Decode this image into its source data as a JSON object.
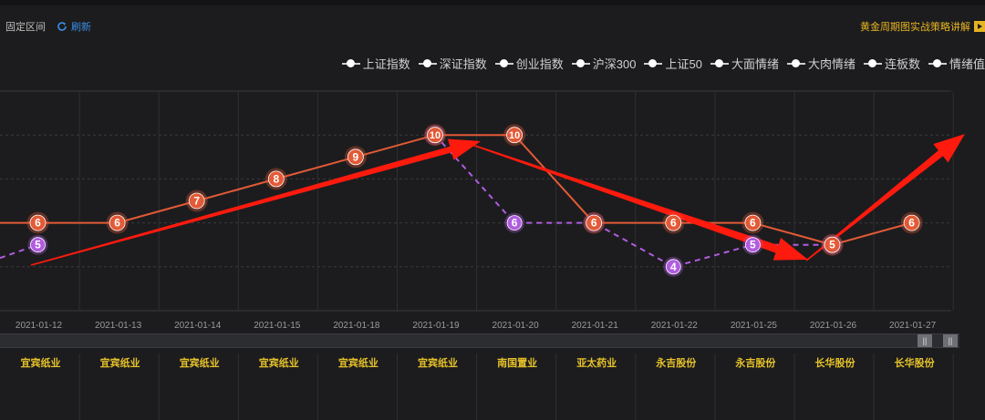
{
  "header": {
    "interval_label": "固定区间",
    "refresh_label": "刷新",
    "strategy_link": "黄金周期图实战策略讲解"
  },
  "legend": {
    "items": [
      "上证指数",
      "深证指数",
      "创业指数",
      "沪深300",
      "上证50",
      "大面情绪",
      "大肉情绪",
      "连板数",
      "情绪值"
    ]
  },
  "colors": {
    "line_orange": "#e35a36",
    "line_purple": "#b05ce0",
    "arrow_red": "#ff1a0e",
    "stock_label": "#e6c229"
  },
  "chart_data": {
    "type": "line",
    "categories": [
      "2021-01-12",
      "2021-01-13",
      "2021-01-14",
      "2021-01-15",
      "2021-01-18",
      "2021-01-19",
      "2021-01-20",
      "2021-01-21",
      "2021-01-22",
      "2021-01-25",
      "2021-01-26",
      "2021-01-27"
    ],
    "stocks": [
      "宜宾纸业",
      "宜宾纸业",
      "宜宾纸业",
      "宜宾纸业",
      "宜宾纸业",
      "宜宾纸业",
      "南国置业",
      "亚太药业",
      "永吉股份",
      "永吉股份",
      "长华股份",
      "长华股份"
    ],
    "series": [
      {
        "values": [
          6,
          6,
          7,
          8,
          9,
          10,
          10,
          6,
          6,
          6,
          5,
          6
        ]
      },
      {
        "values": [
          5,
          null,
          null,
          null,
          null,
          10,
          6,
          6,
          4,
          5,
          5,
          null
        ]
      }
    ],
    "ylim": [
      2,
      12
    ],
    "grid": true,
    "annotations": [
      "up-arrow",
      "down-arrow",
      "up-arrow"
    ]
  },
  "scrollbar": {
    "handle_glyph": "||"
  }
}
